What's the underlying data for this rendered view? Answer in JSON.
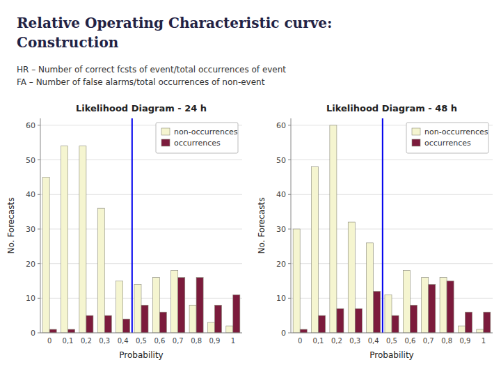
{
  "title": "Relative Operating Characteristic curve: Construction",
  "annotations": [
    "HR – Number of correct fcsts of event/total occurrences of event",
    "FA – Number of false alarms/total occurrences of non-event"
  ],
  "chart_data": [
    {
      "type": "bar",
      "title": "Likelihood Diagram - 24 h",
      "x_label": "Probability",
      "y_label": "No. Forecasts",
      "categories": [
        "0",
        "0,1",
        "0,2",
        "0,3",
        "0,4",
        "0,5",
        "0,6",
        "0,7",
        "0,8",
        "0,9",
        "1"
      ],
      "series": [
        {
          "name": "non-occurrences",
          "color": "#f5f5d0",
          "values": [
            45,
            54,
            54,
            36,
            15,
            14,
            16,
            18,
            8,
            3,
            2
          ]
        },
        {
          "name": "occurrences",
          "color": "#7b1b3c",
          "values": [
            1,
            1,
            5,
            5,
            4,
            8,
            6,
            16,
            16,
            8,
            11
          ]
        }
      ],
      "reference_line": {
        "x": 4.5,
        "color": "#0000ee"
      },
      "ylim": [
        0,
        62
      ],
      "yticks": [
        0,
        10,
        20,
        30,
        40,
        50,
        60
      ],
      "grid": true,
      "legend": "upper right"
    },
    {
      "type": "bar",
      "title": "Likelihood Diagram - 48 h",
      "x_label": "Probability",
      "y_label": "No. Forecasts",
      "categories": [
        "0",
        "0,1",
        "0,2",
        "0,3",
        "0,4",
        "0,5",
        "0,6",
        "0,7",
        "0,8",
        "0,9",
        "1"
      ],
      "series": [
        {
          "name": "non-occurrences",
          "color": "#f5f5d0",
          "values": [
            30,
            48,
            60,
            32,
            26,
            11,
            18,
            16,
            16,
            2,
            1
          ]
        },
        {
          "name": "occurrences",
          "color": "#7b1b3c",
          "values": [
            1,
            5,
            7,
            7,
            12,
            5,
            8,
            14,
            15,
            6,
            6
          ]
        }
      ],
      "reference_line": {
        "x": 4.5,
        "color": "#0000ee"
      },
      "ylim": [
        0,
        62
      ],
      "yticks": [
        0,
        10,
        20,
        30,
        40,
        50,
        60
      ],
      "grid": true,
      "legend": "upper right"
    }
  ]
}
